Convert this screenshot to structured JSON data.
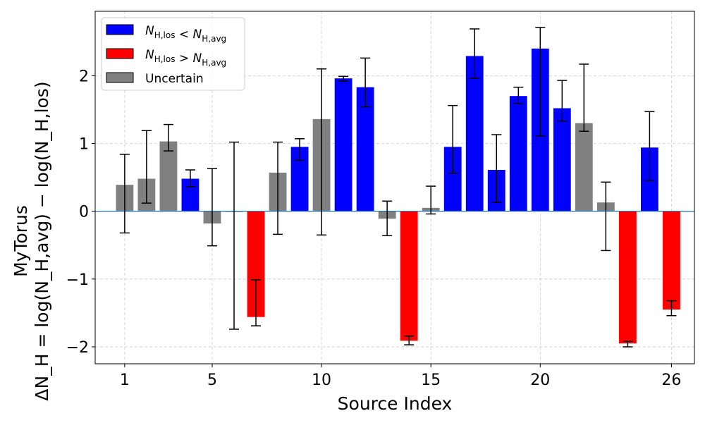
{
  "chart_data": {
    "type": "bar",
    "xlabel": "Source Index",
    "ylabel_line1": "MyTorus",
    "ylabel_line2": "ΔN_H = log(N_H,avg) − log(N_H,los)",
    "xlim": [
      -0.35,
      27.05
    ],
    "ylim": [
      -2.25,
      2.95
    ],
    "xticks": [
      1,
      5,
      10,
      15,
      20,
      26
    ],
    "xtick_labels": [
      "1",
      "5",
      "10",
      "15",
      "20",
      "26"
    ],
    "yticks": [
      -2,
      -1,
      0,
      1,
      2
    ],
    "ytick_labels": [
      "−2",
      "−1",
      "0",
      "1",
      "2"
    ],
    "grid": true,
    "reference_line": 0,
    "colors": {
      "lower": "#0000ff",
      "higher": "#ff0000",
      "uncertain": "#808080",
      "refline": "#1f77b4"
    },
    "legend": {
      "position": "top-left",
      "entries": [
        {
          "key": "lower",
          "label": "N_H,los < N_H,avg"
        },
        {
          "key": "higher",
          "label": "N_H,los > N_H,avg"
        },
        {
          "key": "uncertain",
          "label": "Uncertain"
        }
      ]
    },
    "bars": [
      {
        "index": 1,
        "value": 0.39,
        "err_low": -0.32,
        "err_high": 0.84,
        "category": "uncertain"
      },
      {
        "index": 2,
        "value": 0.48,
        "err_low": 0.12,
        "err_high": 1.19,
        "category": "uncertain"
      },
      {
        "index": 3,
        "value": 1.03,
        "err_low": 0.89,
        "err_high": 1.28,
        "category": "uncertain"
      },
      {
        "index": 4,
        "value": 0.48,
        "err_low": 0.36,
        "err_high": 0.61,
        "category": "lower"
      },
      {
        "index": 5,
        "value": -0.18,
        "err_low": -0.51,
        "err_high": 0.63,
        "category": "uncertain"
      },
      {
        "index": 6,
        "value": -0.01,
        "err_low": -1.74,
        "err_high": 1.02,
        "category": "uncertain"
      },
      {
        "index": 7,
        "value": -1.56,
        "err_low": -1.69,
        "err_high": -1.01,
        "category": "higher"
      },
      {
        "index": 8,
        "value": 0.57,
        "err_low": -0.34,
        "err_high": 1.02,
        "category": "uncertain"
      },
      {
        "index": 9,
        "value": 0.95,
        "err_low": 0.75,
        "err_high": 1.07,
        "category": "lower"
      },
      {
        "index": 10,
        "value": 1.36,
        "err_low": -0.35,
        "err_high": 2.1,
        "category": "uncertain"
      },
      {
        "index": 11,
        "value": 1.96,
        "err_low": 1.92,
        "err_high": 1.99,
        "category": "lower"
      },
      {
        "index": 12,
        "value": 1.83,
        "err_low": 1.54,
        "err_high": 2.26,
        "category": "lower"
      },
      {
        "index": 13,
        "value": -0.11,
        "err_low": -0.36,
        "err_high": 0.15,
        "category": "uncertain"
      },
      {
        "index": 14,
        "value": -1.91,
        "err_low": -1.97,
        "err_high": -1.84,
        "category": "higher"
      },
      {
        "index": 15,
        "value": 0.05,
        "err_low": -0.04,
        "err_high": 0.37,
        "category": "uncertain"
      },
      {
        "index": 16,
        "value": 0.95,
        "err_low": 0.56,
        "err_high": 1.56,
        "category": "lower"
      },
      {
        "index": 17,
        "value": 2.29,
        "err_low": 1.96,
        "err_high": 2.69,
        "category": "lower"
      },
      {
        "index": 18,
        "value": 0.61,
        "err_low": 0.13,
        "err_high": 1.13,
        "category": "lower"
      },
      {
        "index": 19,
        "value": 1.7,
        "err_low": 1.59,
        "err_high": 1.83,
        "category": "lower"
      },
      {
        "index": 20,
        "value": 2.4,
        "err_low": 1.11,
        "err_high": 2.71,
        "category": "lower"
      },
      {
        "index": 21,
        "value": 1.52,
        "err_low": 1.33,
        "err_high": 1.93,
        "category": "lower"
      },
      {
        "index": 22,
        "value": 1.3,
        "err_low": 1.18,
        "err_high": 2.17,
        "category": "uncertain"
      },
      {
        "index": 23,
        "value": 0.13,
        "err_low": -0.58,
        "err_high": 0.43,
        "category": "uncertain"
      },
      {
        "index": 24,
        "value": -1.95,
        "err_low": -2.0,
        "err_high": -1.92,
        "category": "higher"
      },
      {
        "index": 25,
        "value": 0.94,
        "err_low": 0.45,
        "err_high": 1.47,
        "category": "lower"
      },
      {
        "index": 26,
        "value": -1.45,
        "err_low": -1.54,
        "err_high": -1.32,
        "category": "higher"
      }
    ]
  }
}
